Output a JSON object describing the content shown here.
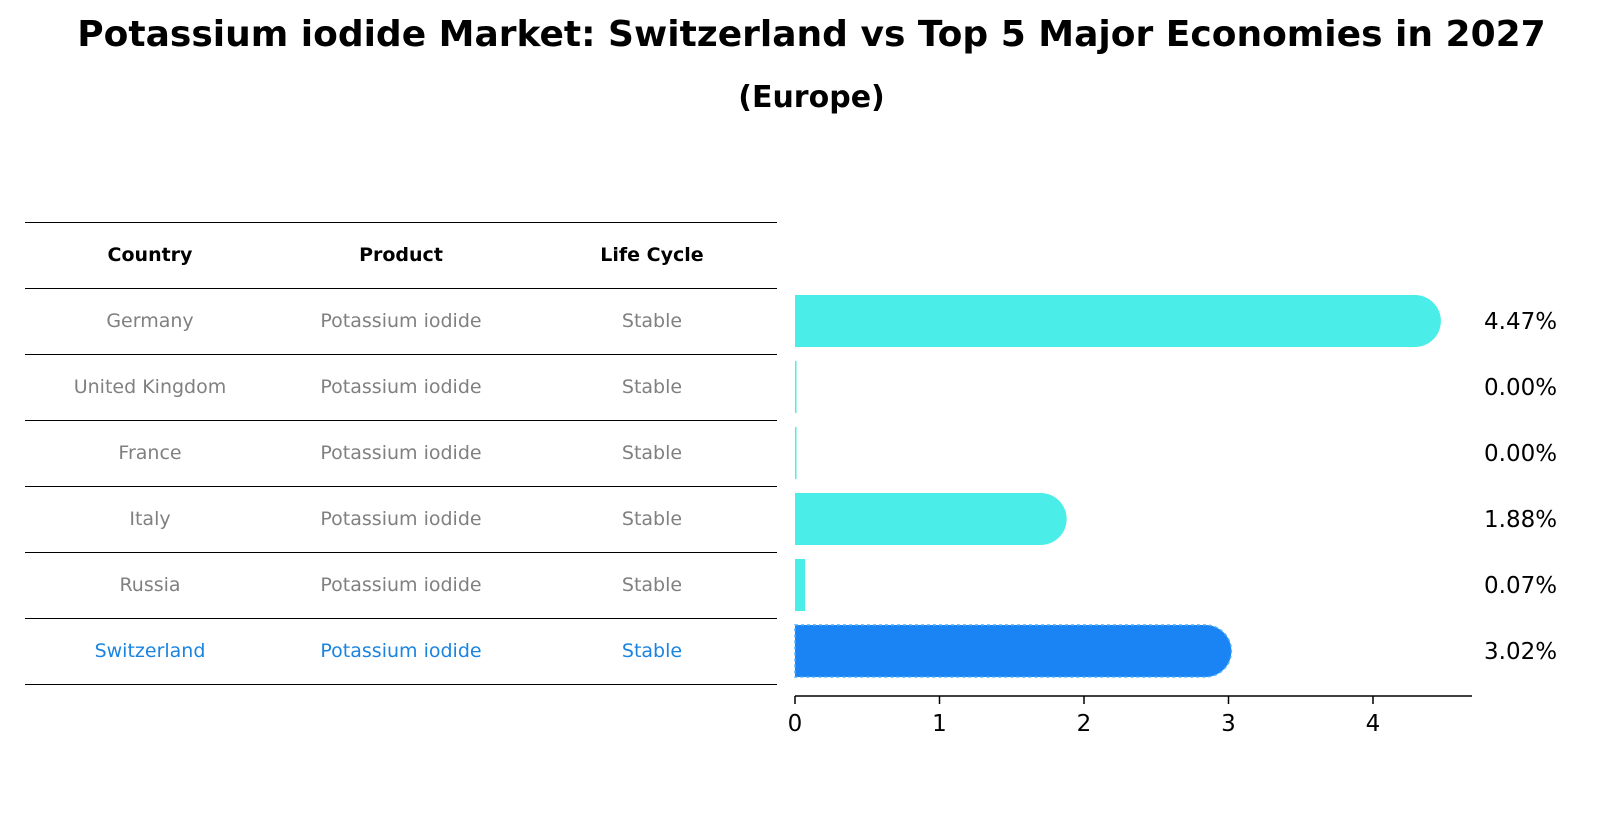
{
  "title": "Potassium iodide Market: Switzerland vs Top 5 Major Economies in 2027",
  "subtitle": "(Europe)",
  "table": {
    "headers": [
      "Country",
      "Product",
      "Life Cycle"
    ],
    "rows": [
      [
        "Germany",
        "Potassium iodide",
        "Stable"
      ],
      [
        "United Kingdom",
        "Potassium iodide",
        "Stable"
      ],
      [
        "France",
        "Potassium iodide",
        "Stable"
      ],
      [
        "Italy",
        "Potassium iodide",
        "Stable"
      ],
      [
        "Russia",
        "Potassium iodide",
        "Stable"
      ],
      [
        "Switzerland",
        "Potassium iodide",
        "Stable"
      ]
    ],
    "highlight_row": 5
  },
  "colors": {
    "bar": "#4bede8",
    "highlight": "#1a84f5",
    "highlight_text": "#1a84e0"
  },
  "chart_data": {
    "type": "bar",
    "orientation": "horizontal",
    "categories": [
      "Germany",
      "United Kingdom",
      "France",
      "Italy",
      "Russia",
      "Switzerland"
    ],
    "values": [
      4.47,
      0.0,
      0.0,
      1.88,
      0.07,
      3.02
    ],
    "value_labels": [
      "4.47%",
      "0.00%",
      "0.00%",
      "1.88%",
      "0.07%",
      "3.02%"
    ],
    "xticks": [
      "0",
      "1",
      "2",
      "3",
      "4"
    ],
    "xlim": [
      0,
      4.7
    ],
    "xlabel": "",
    "ylabel": "",
    "grid": false
  }
}
